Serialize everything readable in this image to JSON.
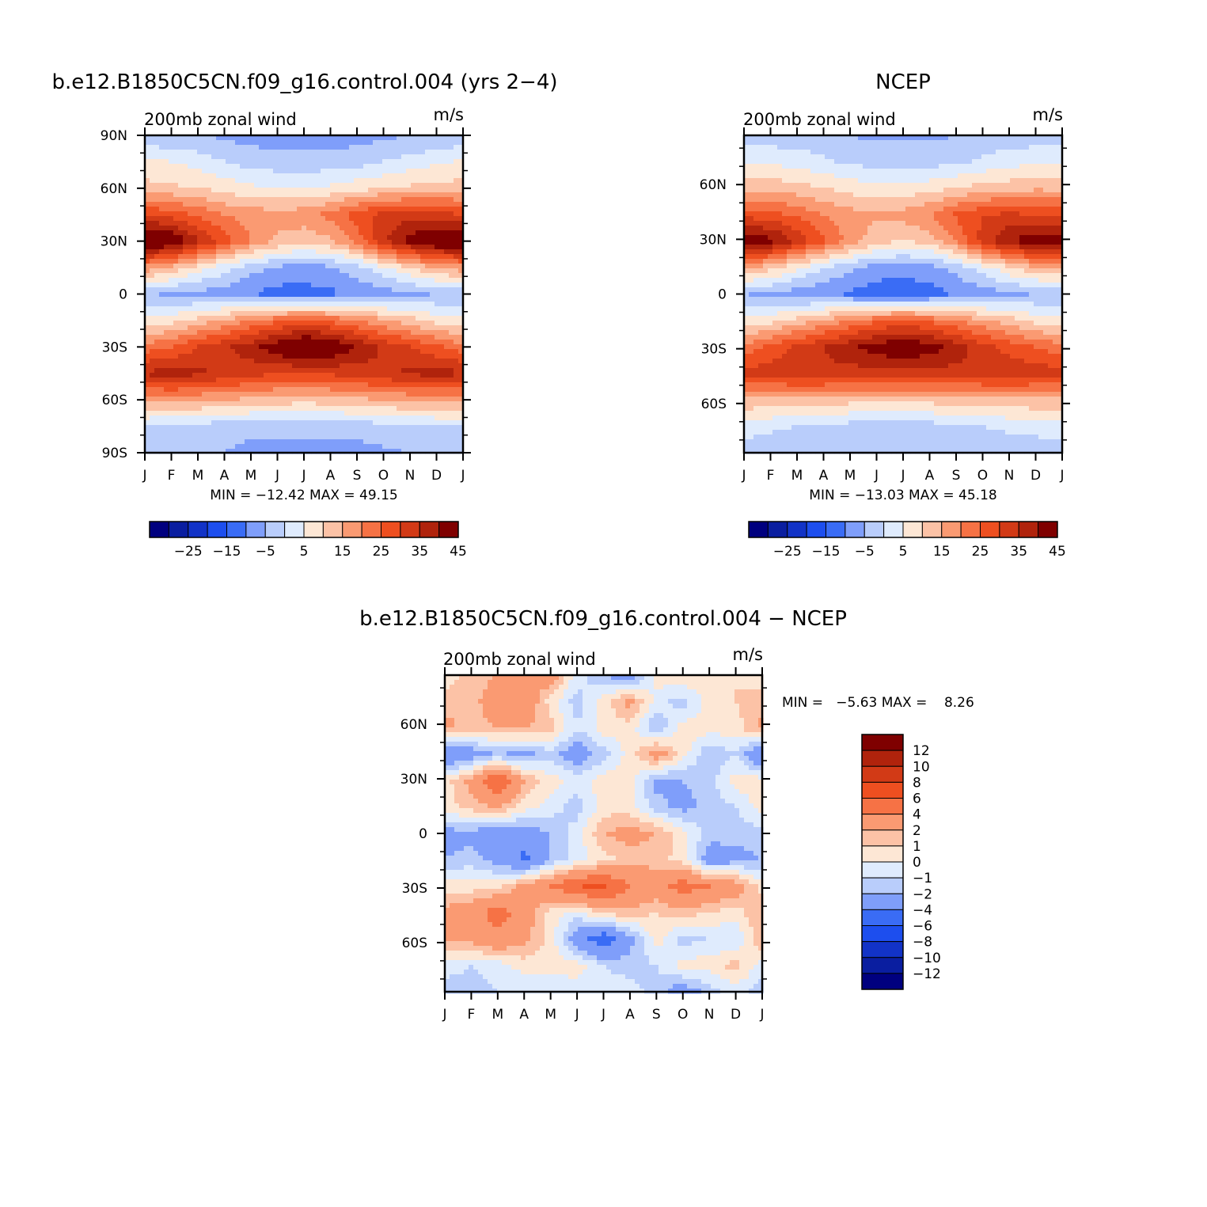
{
  "panels": [
    {
      "title": "b.e12.B1850C5CN.f09_g16.control.004 (yrs 2−4)",
      "left_label": "200mb zonal wind",
      "right_label": "m/s",
      "min_max": "MIN = −12.42 MAX =  49.15"
    },
    {
      "title": "NCEP",
      "left_label": "200mb zonal wind",
      "right_label": "m/s",
      "min_max": "MIN = −13.03 MAX =  45.18"
    },
    {
      "title": "b.e12.B1850C5CN.f09_g16.control.004 − NCEP",
      "left_label": "200mb zonal wind",
      "right_label": "m/s",
      "min_max": "MIN =   −5.63 MAX =    8.26"
    }
  ],
  "chart_data": [
    {
      "type": "heatmap",
      "title": "b.e12.B1850C5CN.f09_g16.control.004 (yrs 2−4)",
      "variable": "200mb zonal wind",
      "units": "m/s",
      "x": [
        "J",
        "F",
        "M",
        "A",
        "M",
        "J",
        "J",
        "A",
        "S",
        "O",
        "N",
        "D",
        "J"
      ],
      "y_ticks": [
        "90N",
        "60N",
        "30N",
        "0",
        "30S",
        "60S",
        "90S"
      ],
      "ylim": [
        -90,
        90
      ],
      "min": -12.42,
      "max": 49.15,
      "latitudes": [
        90,
        75,
        60,
        45,
        30,
        15,
        0,
        -15,
        -30,
        -45,
        -60,
        -75,
        -90
      ],
      "values": [
        [
          -4,
          -5,
          -5,
          -6,
          -7,
          -8,
          -8,
          -8,
          -7,
          -6,
          -5,
          -5,
          -4
        ],
        [
          6,
          5,
          3,
          0,
          -2,
          -3,
          -3,
          -3,
          -2,
          0,
          2,
          4,
          6
        ],
        [
          12,
          11,
          10,
          8,
          6,
          5,
          5,
          6,
          8,
          10,
          11,
          12,
          12
        ],
        [
          30,
          28,
          24,
          20,
          18,
          17,
          18,
          22,
          28,
          32,
          33,
          32,
          30
        ],
        [
          49,
          46,
          36,
          28,
          20,
          14,
          12,
          14,
          22,
          34,
          42,
          47,
          49
        ],
        [
          18,
          14,
          8,
          2,
          -3,
          -6,
          -7,
          -6,
          -2,
          4,
          10,
          15,
          18
        ],
        [
          -4,
          -6,
          -7,
          -8,
          -10,
          -12,
          -12,
          -11,
          -9,
          -8,
          -6,
          -5,
          -4
        ],
        [
          6,
          8,
          12,
          16,
          20,
          24,
          26,
          24,
          20,
          16,
          12,
          8,
          6
        ],
        [
          22,
          25,
          30,
          34,
          38,
          44,
          49,
          46,
          40,
          34,
          30,
          26,
          22
        ],
        [
          36,
          38,
          36,
          34,
          32,
          30,
          30,
          31,
          32,
          34,
          36,
          37,
          36
        ],
        [
          16,
          17,
          16,
          15,
          14,
          13,
          12,
          13,
          14,
          15,
          16,
          16,
          16
        ],
        [
          0,
          -1,
          -2,
          -3,
          -4,
          -4,
          -4,
          -4,
          -3,
          -2,
          -1,
          0,
          0
        ],
        [
          -4,
          -4,
          -5,
          -5,
          -6,
          -6,
          -6,
          -6,
          -7,
          -6,
          -5,
          -5,
          -4
        ]
      ]
    },
    {
      "type": "heatmap",
      "title": "NCEP",
      "variable": "200mb zonal wind",
      "units": "m/s",
      "x": [
        "J",
        "F",
        "M",
        "A",
        "M",
        "J",
        "J",
        "A",
        "S",
        "O",
        "N",
        "D",
        "J"
      ],
      "y_ticks": [
        "60N",
        "30N",
        "0",
        "30S",
        "60S"
      ],
      "ylim": [
        -87,
        87
      ],
      "min": -13.03,
      "max": 45.18,
      "latitudes": [
        87,
        75,
        60,
        45,
        30,
        15,
        0,
        -15,
        -30,
        -45,
        -60,
        -75,
        -87
      ],
      "values": [
        [
          -3,
          -3,
          -3,
          -4,
          -5,
          -6,
          -6,
          -6,
          -5,
          -4,
          -3,
          -3,
          -3
        ],
        [
          5,
          4,
          3,
          1,
          -1,
          -2,
          -2,
          -2,
          -1,
          1,
          3,
          4,
          5
        ],
        [
          14,
          13,
          12,
          10,
          8,
          7,
          7,
          8,
          10,
          12,
          13,
          14,
          14
        ],
        [
          28,
          27,
          24,
          20,
          17,
          16,
          17,
          20,
          26,
          30,
          31,
          30,
          28
        ],
        [
          45,
          42,
          34,
          26,
          18,
          12,
          10,
          12,
          20,
          32,
          40,
          44,
          45
        ],
        [
          16,
          12,
          6,
          0,
          -4,
          -7,
          -8,
          -7,
          -3,
          3,
          9,
          14,
          16
        ],
        [
          -5,
          -6,
          -8,
          -9,
          -11,
          -13,
          -13,
          -12,
          -10,
          -8,
          -6,
          -5,
          -5
        ],
        [
          6,
          8,
          12,
          16,
          20,
          24,
          26,
          24,
          20,
          16,
          12,
          8,
          6
        ],
        [
          22,
          26,
          31,
          35,
          39,
          43,
          45,
          43,
          38,
          32,
          28,
          25,
          22
        ],
        [
          32,
          33,
          34,
          34,
          33,
          33,
          33,
          33,
          33,
          34,
          34,
          33,
          32
        ],
        [
          14,
          14,
          13,
          13,
          12,
          12,
          12,
          12,
          12,
          13,
          14,
          14,
          14
        ],
        [
          2,
          1,
          0,
          -1,
          -2,
          -2,
          -2,
          -2,
          -1,
          0,
          1,
          2,
          2
        ],
        [
          -2,
          -3,
          -3,
          -4,
          -4,
          -5,
          -5,
          -5,
          -4,
          -4,
          -3,
          -3,
          -2
        ]
      ]
    },
    {
      "type": "heatmap",
      "title": "b.e12.B1850C5CN.f09_g16.control.004 − NCEP",
      "variable": "200mb zonal wind",
      "units": "m/s",
      "x": [
        "J",
        "F",
        "M",
        "A",
        "M",
        "J",
        "J",
        "A",
        "S",
        "O",
        "N",
        "D",
        "J"
      ],
      "y_ticks": [
        "60N",
        "30N",
        "0",
        "30S",
        "60S"
      ],
      "ylim": [
        -87,
        87
      ],
      "min": -5.63,
      "max": 8.26,
      "latitudes": [
        87,
        75,
        60,
        45,
        30,
        15,
        0,
        -15,
        -30,
        -45,
        -60,
        -75,
        -87
      ],
      "values": [
        [
          0.5,
          1.5,
          2,
          2.5,
          3,
          -0.5,
          -2,
          -3,
          0.5,
          1,
          0.5,
          1,
          0.5
        ],
        [
          1.5,
          1.5,
          3,
          3.5,
          0.5,
          -1.5,
          0.5,
          2.5,
          -0.5,
          -1.5,
          0.5,
          1,
          1.5
        ],
        [
          2.5,
          1.5,
          2,
          2,
          1.5,
          -1,
          0.5,
          0.5,
          -2,
          0.5,
          0.5,
          0.5,
          2.5
        ],
        [
          -4,
          -3,
          -2,
          -2.5,
          -1.5,
          -3,
          -1.5,
          0.5,
          3,
          0.5,
          -2,
          -1,
          -4
        ],
        [
          0.5,
          2.5,
          6,
          2,
          0.5,
          -0.5,
          0.5,
          0.5,
          -2.5,
          -2,
          -1.5,
          0.5,
          0.5
        ],
        [
          0.5,
          1.5,
          2,
          0.5,
          -0.5,
          -1.5,
          0.5,
          0.5,
          -1.5,
          -2.5,
          -1.5,
          -1,
          0.5
        ],
        [
          -2.5,
          -2.5,
          -3,
          -3,
          -2,
          -0.5,
          2,
          2.5,
          2,
          0.5,
          -1.5,
          -1.5,
          -1.5
        ],
        [
          -2,
          -1.5,
          -2.5,
          -4.5,
          -2,
          -0.5,
          0.5,
          1.5,
          1.5,
          0.5,
          -3,
          -2.5,
          -2
        ],
        [
          0.5,
          0.5,
          0.5,
          2.5,
          4,
          6,
          6.5,
          4,
          3,
          5,
          4,
          3,
          0.5
        ],
        [
          2.5,
          3,
          5,
          3,
          0.5,
          -0.5,
          1.5,
          1.5,
          1,
          1.5,
          1,
          0.5,
          2
        ],
        [
          2,
          2.5,
          3.5,
          2.5,
          0.5,
          -3,
          -5.5,
          -2.5,
          0.5,
          -1.5,
          -1,
          -1,
          2
        ],
        [
          -0.5,
          -1,
          -0.5,
          0.5,
          0.5,
          0.5,
          -1,
          -1.5,
          -1,
          0.5,
          0.5,
          1.5,
          -0.5
        ],
        [
          -1.5,
          -1.5,
          -1,
          -1,
          -1,
          -0.5,
          -0.5,
          -0.5,
          -1.5,
          -3,
          -1.5,
          -0.5,
          -1.5
        ]
      ]
    }
  ],
  "legends": {
    "top": {
      "colors": [
        "#00007f",
        "#0a1ea0",
        "#1233c7",
        "#1d4eee",
        "#3a6cf5",
        "#7f9efa",
        "#b9cdfb",
        "#dfebfd",
        "#fde7d5",
        "#fcc2a6",
        "#fa9a72",
        "#f67245",
        "#ee4f20",
        "#d23a16",
        "#b0230c",
        "#7f0000"
      ],
      "labels": [
        "−25",
        "−15",
        "−5",
        "5",
        "15",
        "25",
        "35",
        "45"
      ],
      "bounds": [
        -35,
        -30,
        -25,
        -20,
        -15,
        -10,
        -5,
        0,
        5,
        10,
        15,
        20,
        25,
        30,
        35,
        40,
        45
      ]
    },
    "diff": {
      "colors": [
        "#7f0000",
        "#b0230c",
        "#d23a16",
        "#ee4f20",
        "#f67245",
        "#fa9a72",
        "#fcc2a6",
        "#fde7d5",
        "#dfebfd",
        "#b9cdfb",
        "#7f9efa",
        "#3a6cf5",
        "#1d4eee",
        "#1233c7",
        "#0a1ea0",
        "#00007f"
      ],
      "labels": [
        "12",
        "10",
        "8",
        "6",
        "4",
        "2",
        "1",
        "0",
        "−1",
        "−2",
        "−4",
        "−6",
        "−8",
        "−10",
        "−12"
      ],
      "bounds": [
        -12,
        -10,
        -8,
        -6,
        -4,
        -2,
        -1,
        0,
        1,
        2,
        4,
        6,
        8,
        10,
        12
      ]
    }
  }
}
